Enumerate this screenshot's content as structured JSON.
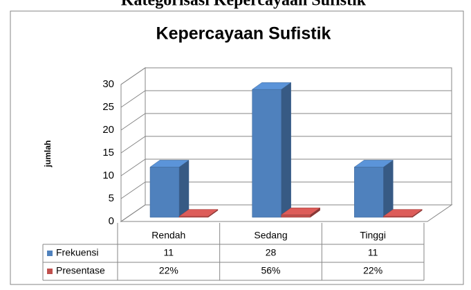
{
  "heading": "Kategorisasi Kepercayaan Sufistik",
  "chart_data": {
    "type": "bar3d",
    "title": "Kepercayaan Sufistik",
    "y_label": "jumlah",
    "categories": [
      "Rendah",
      "Sedang",
      "Tinggi"
    ],
    "series": [
      {
        "name": "Frekuensi",
        "color": "#4f81bd",
        "values": [
          11,
          28,
          11
        ]
      },
      {
        "name": "Presentase",
        "color": "#c0504d",
        "values": [
          0.22,
          0.56,
          0.22
        ],
        "value_labels": [
          "22%",
          "56%",
          "22%"
        ]
      }
    ],
    "ylim": [
      0,
      30
    ],
    "yticks": [
      0,
      5,
      10,
      15,
      20,
      25,
      30
    ],
    "grid": true
  }
}
